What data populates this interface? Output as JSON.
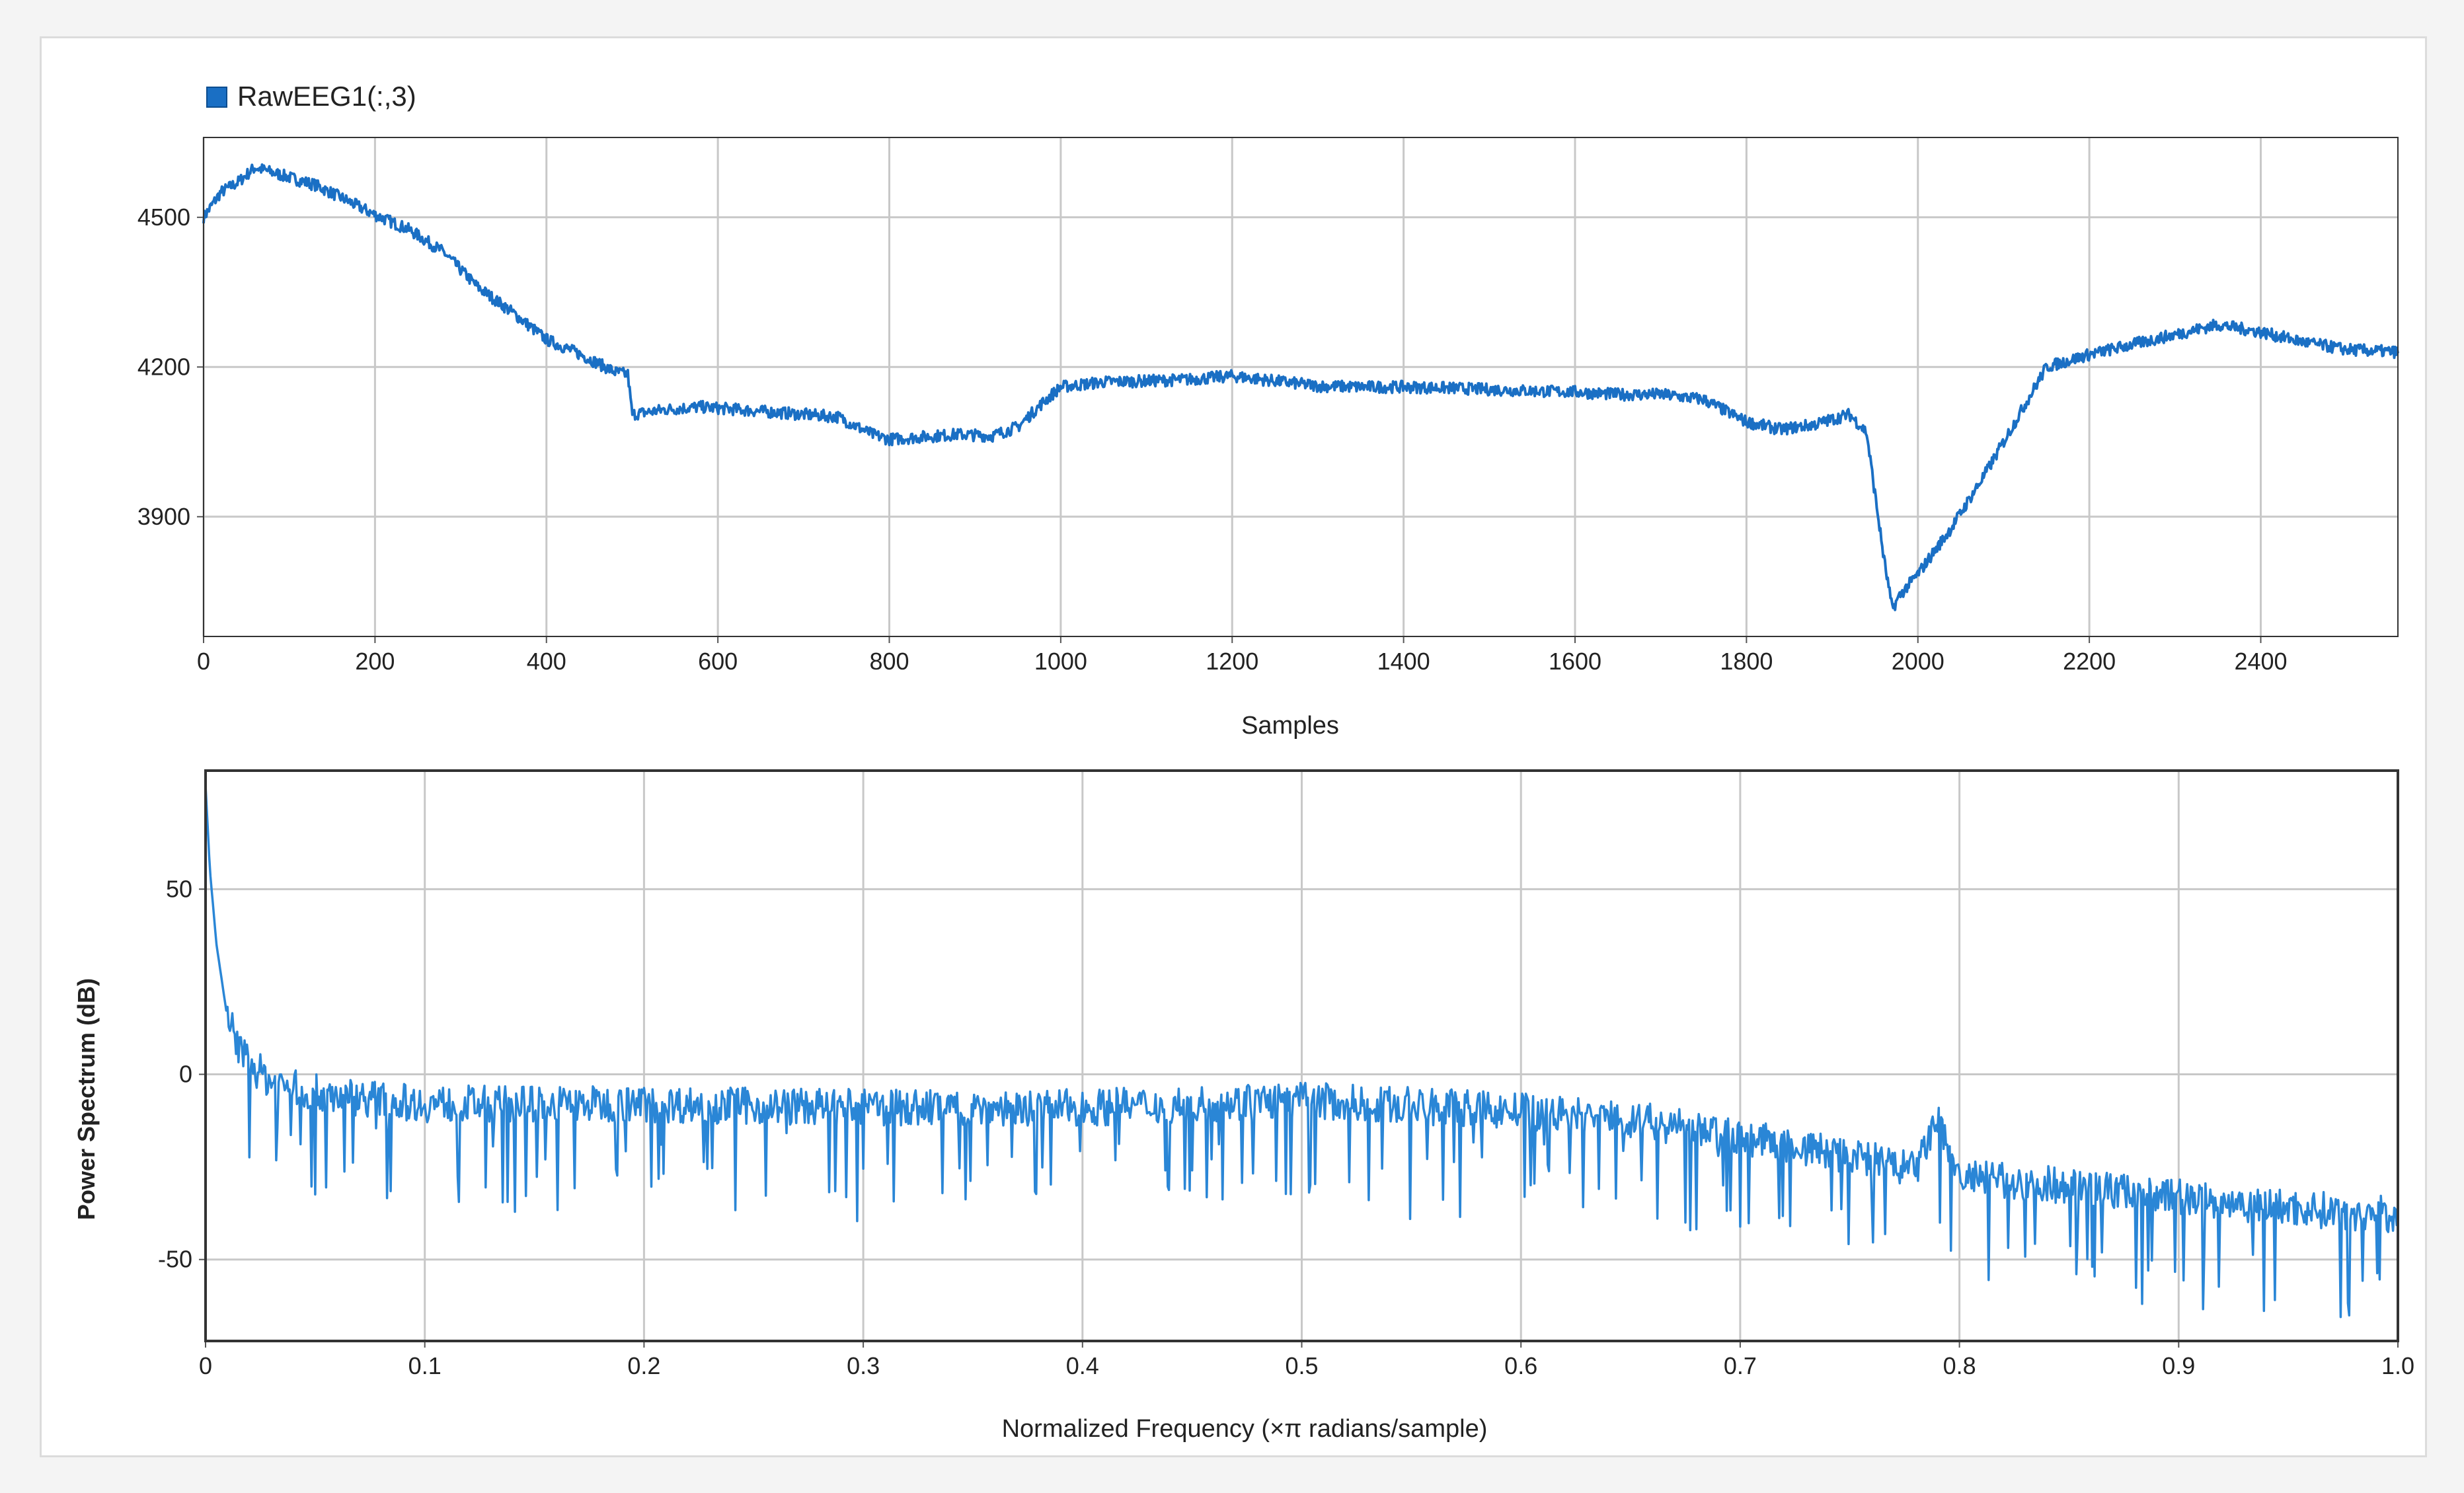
{
  "chart_data": [
    {
      "type": "line",
      "legend": "RawEEG1(:,3)",
      "legend_position": "top-left",
      "xlabel": "Samples",
      "ylabel": "",
      "xlim": [
        0,
        2560
      ],
      "ylim": [
        3660,
        4660
      ],
      "xticks": [
        0,
        200,
        400,
        600,
        800,
        1000,
        1200,
        1400,
        1600,
        1800,
        2000,
        2200,
        2400
      ],
      "yticks": [
        3900,
        4200,
        4500
      ],
      "grid": true,
      "color": "#1a6fc4",
      "series": [
        {
          "name": "RawEEG1(:,3)",
          "x": [
            0,
            20,
            40,
            60,
            80,
            100,
            130,
            160,
            200,
            240,
            280,
            320,
            360,
            400,
            440,
            480,
            495,
            500,
            540,
            580,
            620,
            660,
            700,
            740,
            780,
            800,
            840,
            880,
            920,
            950,
            980,
            1000,
            1050,
            1100,
            1150,
            1200,
            1250,
            1300,
            1350,
            1400,
            1450,
            1500,
            1550,
            1600,
            1650,
            1700,
            1750,
            1800,
            1840,
            1880,
            1920,
            1940,
            1960,
            1970,
            1980,
            2000,
            2040,
            2080,
            2120,
            2150,
            2200,
            2250,
            2300,
            2350,
            2400,
            2450,
            2500,
            2560
          ],
          "values": [
            4500,
            4550,
            4570,
            4600,
            4590,
            4580,
            4565,
            4540,
            4505,
            4475,
            4430,
            4360,
            4310,
            4255,
            4225,
            4190,
            4185,
            4105,
            4115,
            4120,
            4115,
            4110,
            4105,
            4100,
            4065,
            4055,
            4060,
            4065,
            4062,
            4080,
            4130,
            4160,
            4170,
            4172,
            4175,
            4182,
            4172,
            4162,
            4160,
            4160,
            4158,
            4155,
            4152,
            4150,
            4145,
            4145,
            4135,
            4090,
            4075,
            4085,
            4105,
            4070,
            3820,
            3715,
            3745,
            3785,
            3880,
            3990,
            4110,
            4200,
            4225,
            4245,
            4265,
            4285,
            4270,
            4250,
            4235,
            4230
          ]
        }
      ]
    },
    {
      "type": "line",
      "xlabel": "Normalized Frequency (×π radians/sample)",
      "ylabel": "Power Spectrum (dB)",
      "xlim": [
        0,
        1.0
      ],
      "ylim": [
        -72,
        82
      ],
      "xticks": [
        "0",
        "0.1",
        "0.2",
        "0.3",
        "0.4",
        "0.5",
        "0.6",
        "0.7",
        "0.8",
        "0.9",
        "1.0"
      ],
      "yticks": [
        -50,
        0,
        50
      ],
      "grid": true,
      "color": "#2a86d6",
      "series": [
        {
          "name": "",
          "x": [
            0,
            0.002,
            0.005,
            0.01,
            0.015,
            0.02,
            0.03,
            0.05,
            0.1,
            0.2,
            0.3,
            0.4,
            0.5,
            0.6,
            0.65,
            0.7,
            0.75,
            0.78,
            0.79,
            0.8,
            0.85,
            0.9,
            0.95,
            1.0
          ],
          "values": [
            78,
            55,
            35,
            15,
            8,
            3,
            -2,
            -5,
            -8,
            -8,
            -9,
            -9,
            -7,
            -10,
            -12,
            -17,
            -22,
            -26,
            -12,
            -28,
            -30,
            -33,
            -36,
            -38
          ]
        }
      ]
    }
  ]
}
